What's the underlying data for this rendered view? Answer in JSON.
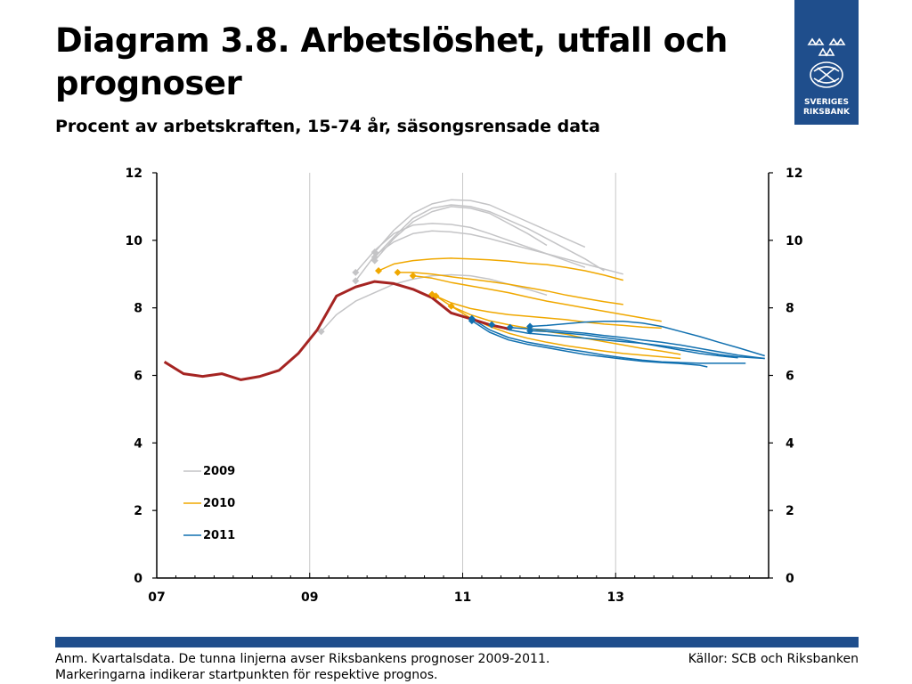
{
  "header": {
    "title": "Diagram 3.8. Arbetslöshet, utfall och prognoser",
    "subtitle": "Procent av arbetskraften, 15-74 år, säsongsrensade data"
  },
  "logo": {
    "line1": "SVERIGES",
    "line2": "RIKSBANK"
  },
  "footer": {
    "note": "Anm. Kvartalsdata. De tunna linjerna avser Riksbankens prognoser 2009-2011. Markeringarna indikerar startpunkten för respektive prognos.",
    "source": "Källor: SCB och Riksbanken"
  },
  "colors": {
    "outcome": "#a52422",
    "f2009": "#c4c4c6",
    "f2010": "#f0a800",
    "f2011": "#1170b0",
    "brand": "#1f4e8c"
  },
  "chart_data": {
    "type": "line",
    "x_ticks": [
      2007,
      2009,
      2011,
      2013
    ],
    "x_tick_labels": [
      "07",
      "09",
      "11",
      "13"
    ],
    "xlim": [
      2007,
      2015.0
    ],
    "ylim": [
      0,
      12
    ],
    "y_ticks": [
      0,
      2,
      4,
      6,
      8,
      10,
      12
    ],
    "right_axis_ticks": [
      0,
      2,
      4,
      6,
      8,
      10,
      12
    ],
    "grid": "vertical",
    "legend": {
      "placement": "bottom-left",
      "entries": [
        {
          "label": "2009",
          "color_key": "f2009"
        },
        {
          "label": "2010",
          "color_key": "f2010"
        },
        {
          "label": "2011",
          "color_key": "f2011"
        }
      ]
    },
    "outcome": {
      "color_key": "outcome",
      "points": [
        [
          2007.1,
          6.4
        ],
        [
          2007.35,
          6.05
        ],
        [
          2007.6,
          5.97
        ],
        [
          2007.85,
          6.05
        ],
        [
          2008.1,
          5.87
        ],
        [
          2008.35,
          5.97
        ],
        [
          2008.6,
          6.15
        ],
        [
          2008.85,
          6.65
        ],
        [
          2009.1,
          7.35
        ],
        [
          2009.35,
          8.35
        ],
        [
          2009.6,
          8.62
        ],
        [
          2009.85,
          8.78
        ],
        [
          2010.1,
          8.72
        ],
        [
          2010.35,
          8.55
        ],
        [
          2010.6,
          8.3
        ],
        [
          2010.85,
          7.85
        ],
        [
          2011.1,
          7.68
        ],
        [
          2011.35,
          7.5
        ],
        [
          2011.6,
          7.38
        ]
      ]
    },
    "forecasts": [
      {
        "group": "2009",
        "start": [
          2009.15,
          7.3
        ],
        "points": [
          [
            2009.15,
            7.3
          ],
          [
            2009.35,
            7.8
          ],
          [
            2009.6,
            8.2
          ],
          [
            2009.85,
            8.45
          ],
          [
            2010.1,
            8.7
          ],
          [
            2010.35,
            8.85
          ],
          [
            2010.6,
            8.95
          ],
          [
            2010.85,
            8.98
          ],
          [
            2011.1,
            8.95
          ],
          [
            2011.35,
            8.85
          ],
          [
            2011.6,
            8.7
          ],
          [
            2011.85,
            8.55
          ],
          [
            2012.1,
            8.38
          ]
        ]
      },
      {
        "group": "2009",
        "start": [
          2009.6,
          8.8
        ],
        "points": [
          [
            2009.6,
            8.8
          ],
          [
            2009.85,
            9.55
          ],
          [
            2010.1,
            9.95
          ],
          [
            2010.35,
            10.2
          ],
          [
            2010.6,
            10.28
          ],
          [
            2010.85,
            10.25
          ],
          [
            2011.1,
            10.18
          ],
          [
            2011.35,
            10.05
          ],
          [
            2011.6,
            9.9
          ],
          [
            2011.85,
            9.75
          ],
          [
            2012.1,
            9.6
          ],
          [
            2012.35,
            9.45
          ],
          [
            2012.6,
            9.3
          ],
          [
            2012.85,
            9.15
          ],
          [
            2013.1,
            9.0
          ]
        ]
      },
      {
        "group": "2009",
        "start": [
          2009.6,
          9.05
        ],
        "points": [
          [
            2009.6,
            9.05
          ],
          [
            2009.85,
            9.7
          ],
          [
            2010.1,
            10.2
          ],
          [
            2010.35,
            10.45
          ],
          [
            2010.6,
            10.5
          ],
          [
            2010.85,
            10.47
          ],
          [
            2011.1,
            10.38
          ],
          [
            2011.35,
            10.2
          ],
          [
            2011.6,
            10.0
          ],
          [
            2011.85,
            9.8
          ],
          [
            2012.1,
            9.6
          ],
          [
            2012.35,
            9.4
          ],
          [
            2012.6,
            9.2
          ]
        ]
      },
      {
        "group": "2009",
        "start": [
          2009.85,
          9.4
        ],
        "points": [
          [
            2009.85,
            9.4
          ],
          [
            2010.1,
            10.05
          ],
          [
            2010.35,
            10.55
          ],
          [
            2010.6,
            10.85
          ],
          [
            2010.85,
            11.0
          ],
          [
            2011.1,
            10.95
          ],
          [
            2011.35,
            10.8
          ],
          [
            2011.6,
            10.5
          ],
          [
            2011.85,
            10.2
          ],
          [
            2012.1,
            9.85
          ]
        ]
      },
      {
        "group": "2009",
        "start": [
          2009.85,
          9.5
        ],
        "points": [
          [
            2009.85,
            9.5
          ],
          [
            2010.1,
            10.1
          ],
          [
            2010.35,
            10.65
          ],
          [
            2010.6,
            10.95
          ],
          [
            2010.85,
            11.05
          ],
          [
            2011.1,
            11.0
          ],
          [
            2011.35,
            10.85
          ],
          [
            2011.6,
            10.6
          ],
          [
            2011.85,
            10.35
          ],
          [
            2012.1,
            10.05
          ],
          [
            2012.35,
            9.75
          ],
          [
            2012.6,
            9.45
          ],
          [
            2012.85,
            9.1
          ]
        ]
      },
      {
        "group": "2009",
        "start": [
          2009.85,
          9.65
        ],
        "points": [
          [
            2009.85,
            9.65
          ],
          [
            2010.1,
            10.3
          ],
          [
            2010.35,
            10.8
          ],
          [
            2010.6,
            11.08
          ],
          [
            2010.85,
            11.2
          ],
          [
            2011.1,
            11.18
          ],
          [
            2011.35,
            11.05
          ],
          [
            2011.6,
            10.8
          ],
          [
            2011.85,
            10.55
          ],
          [
            2012.1,
            10.3
          ],
          [
            2012.35,
            10.05
          ],
          [
            2012.6,
            9.8
          ]
        ]
      },
      {
        "group": "2010",
        "start": [
          2009.9,
          9.1
        ],
        "points": [
          [
            2009.9,
            9.1
          ],
          [
            2010.1,
            9.3
          ],
          [
            2010.35,
            9.4
          ],
          [
            2010.6,
            9.45
          ],
          [
            2010.85,
            9.47
          ],
          [
            2011.1,
            9.45
          ],
          [
            2011.35,
            9.42
          ],
          [
            2011.6,
            9.38
          ],
          [
            2011.85,
            9.32
          ],
          [
            2012.1,
            9.28
          ],
          [
            2012.35,
            9.2
          ],
          [
            2012.6,
            9.1
          ],
          [
            2012.85,
            8.97
          ],
          [
            2013.1,
            8.82
          ]
        ]
      },
      {
        "group": "2010",
        "start": [
          2010.15,
          9.05
        ],
        "points": [
          [
            2010.15,
            9.05
          ],
          [
            2010.35,
            9.05
          ],
          [
            2010.6,
            9.0
          ],
          [
            2010.85,
            8.92
          ],
          [
            2011.1,
            8.85
          ],
          [
            2011.35,
            8.78
          ],
          [
            2011.6,
            8.7
          ],
          [
            2011.85,
            8.6
          ],
          [
            2012.1,
            8.5
          ],
          [
            2012.35,
            8.38
          ],
          [
            2012.6,
            8.28
          ],
          [
            2012.85,
            8.18
          ],
          [
            2013.1,
            8.1
          ]
        ]
      },
      {
        "group": "2010",
        "start": [
          2010.35,
          8.95
        ],
        "points": [
          [
            2010.35,
            8.95
          ],
          [
            2010.6,
            8.88
          ],
          [
            2010.85,
            8.75
          ],
          [
            2011.1,
            8.65
          ],
          [
            2011.35,
            8.55
          ],
          [
            2011.6,
            8.45
          ],
          [
            2011.85,
            8.32
          ],
          [
            2012.1,
            8.2
          ],
          [
            2012.35,
            8.1
          ],
          [
            2012.6,
            8.0
          ],
          [
            2012.85,
            7.9
          ],
          [
            2013.1,
            7.8
          ],
          [
            2013.35,
            7.7
          ],
          [
            2013.6,
            7.6
          ]
        ]
      },
      {
        "group": "2010",
        "start": [
          2010.6,
          8.4
        ],
        "points": [
          [
            2010.6,
            8.4
          ],
          [
            2010.85,
            8.15
          ],
          [
            2011.1,
            7.98
          ],
          [
            2011.35,
            7.88
          ],
          [
            2011.6,
            7.8
          ],
          [
            2011.85,
            7.75
          ],
          [
            2012.1,
            7.7
          ],
          [
            2012.35,
            7.65
          ],
          [
            2012.6,
            7.58
          ],
          [
            2012.85,
            7.52
          ],
          [
            2013.1,
            7.48
          ],
          [
            2013.35,
            7.43
          ],
          [
            2013.6,
            7.4
          ]
        ]
      },
      {
        "group": "2010",
        "start": [
          2010.65,
          8.35
        ],
        "points": [
          [
            2010.65,
            8.35
          ],
          [
            2010.85,
            8.05
          ],
          [
            2011.1,
            7.8
          ],
          [
            2011.35,
            7.62
          ],
          [
            2011.6,
            7.5
          ],
          [
            2011.85,
            7.4
          ],
          [
            2012.1,
            7.3
          ],
          [
            2012.35,
            7.22
          ],
          [
            2012.6,
            7.1
          ],
          [
            2012.85,
            7.0
          ],
          [
            2013.1,
            6.9
          ],
          [
            2013.35,
            6.8
          ],
          [
            2013.6,
            6.72
          ],
          [
            2013.85,
            6.62
          ]
        ]
      },
      {
        "group": "2010",
        "start": [
          2010.85,
          8.05
        ],
        "points": [
          [
            2010.85,
            8.05
          ],
          [
            2011.1,
            7.7
          ],
          [
            2011.35,
            7.45
          ],
          [
            2011.6,
            7.25
          ],
          [
            2011.85,
            7.1
          ],
          [
            2012.1,
            6.98
          ],
          [
            2012.35,
            6.88
          ],
          [
            2012.6,
            6.8
          ],
          [
            2012.85,
            6.72
          ],
          [
            2013.1,
            6.65
          ],
          [
            2013.35,
            6.6
          ],
          [
            2013.6,
            6.55
          ],
          [
            2013.85,
            6.5
          ]
        ]
      },
      {
        "group": "2011",
        "start": [
          2011.12,
          7.62
        ],
        "points": [
          [
            2011.12,
            7.62
          ],
          [
            2011.35,
            7.28
          ],
          [
            2011.6,
            7.05
          ],
          [
            2011.85,
            6.92
          ],
          [
            2012.1,
            6.82
          ],
          [
            2012.35,
            6.72
          ],
          [
            2012.6,
            6.62
          ],
          [
            2012.85,
            6.55
          ],
          [
            2013.1,
            6.48
          ],
          [
            2013.35,
            6.42
          ],
          [
            2013.6,
            6.38
          ],
          [
            2013.85,
            6.35
          ],
          [
            2014.1,
            6.3
          ],
          [
            2014.2,
            6.25
          ]
        ]
      },
      {
        "group": "2011",
        "start": [
          2011.12,
          7.68
        ],
        "points": [
          [
            2011.12,
            7.68
          ],
          [
            2011.35,
            7.35
          ],
          [
            2011.6,
            7.12
          ],
          [
            2011.85,
            6.98
          ],
          [
            2012.1,
            6.88
          ],
          [
            2012.35,
            6.78
          ],
          [
            2012.6,
            6.7
          ],
          [
            2012.85,
            6.6
          ],
          [
            2013.1,
            6.52
          ],
          [
            2013.35,
            6.45
          ],
          [
            2013.6,
            6.4
          ],
          [
            2013.85,
            6.38
          ],
          [
            2014.1,
            6.36
          ],
          [
            2014.35,
            6.36
          ],
          [
            2014.6,
            6.36
          ],
          [
            2014.7,
            6.36
          ]
        ]
      },
      {
        "group": "2011",
        "start": [
          2011.38,
          7.5
        ],
        "points": [
          [
            2011.38,
            7.5
          ],
          [
            2011.6,
            7.35
          ],
          [
            2011.85,
            7.25
          ],
          [
            2012.1,
            7.2
          ],
          [
            2012.35,
            7.15
          ],
          [
            2012.6,
            7.1
          ],
          [
            2012.85,
            7.05
          ],
          [
            2013.1,
            7.0
          ],
          [
            2013.35,
            6.95
          ],
          [
            2013.6,
            6.88
          ],
          [
            2013.85,
            6.8
          ],
          [
            2014.1,
            6.72
          ],
          [
            2014.35,
            6.62
          ],
          [
            2014.6,
            6.55
          ],
          [
            2014.95,
            6.5
          ]
        ]
      },
      {
        "group": "2011",
        "start": [
          2011.62,
          7.42
        ],
        "points": [
          [
            2011.62,
            7.42
          ],
          [
            2011.85,
            7.38
          ],
          [
            2012.1,
            7.35
          ],
          [
            2012.35,
            7.3
          ],
          [
            2012.6,
            7.25
          ],
          [
            2012.85,
            7.18
          ],
          [
            2013.1,
            7.12
          ],
          [
            2013.35,
            7.05
          ],
          [
            2013.6,
            6.98
          ],
          [
            2013.85,
            6.9
          ],
          [
            2014.1,
            6.8
          ],
          [
            2014.35,
            6.7
          ],
          [
            2014.6,
            6.6
          ],
          [
            2014.95,
            6.5
          ]
        ]
      },
      {
        "group": "2011",
        "start": [
          2011.88,
          7.45
        ],
        "points": [
          [
            2011.88,
            7.45
          ],
          [
            2012.1,
            7.48
          ],
          [
            2012.35,
            7.53
          ],
          [
            2012.6,
            7.58
          ],
          [
            2012.85,
            7.6
          ],
          [
            2013.1,
            7.6
          ],
          [
            2013.35,
            7.55
          ],
          [
            2013.6,
            7.45
          ],
          [
            2013.85,
            7.3
          ],
          [
            2014.1,
            7.15
          ],
          [
            2014.35,
            6.98
          ],
          [
            2014.6,
            6.82
          ],
          [
            2014.95,
            6.58
          ]
        ]
      },
      {
        "group": "2011",
        "start": [
          2011.88,
          7.32
        ],
        "points": [
          [
            2011.88,
            7.32
          ],
          [
            2012.1,
            7.3
          ],
          [
            2012.35,
            7.25
          ],
          [
            2012.6,
            7.2
          ],
          [
            2012.85,
            7.12
          ],
          [
            2013.1,
            7.05
          ],
          [
            2013.35,
            6.95
          ],
          [
            2013.6,
            6.85
          ],
          [
            2013.85,
            6.75
          ],
          [
            2014.1,
            6.65
          ],
          [
            2014.35,
            6.58
          ],
          [
            2014.6,
            6.52
          ]
        ]
      }
    ]
  }
}
